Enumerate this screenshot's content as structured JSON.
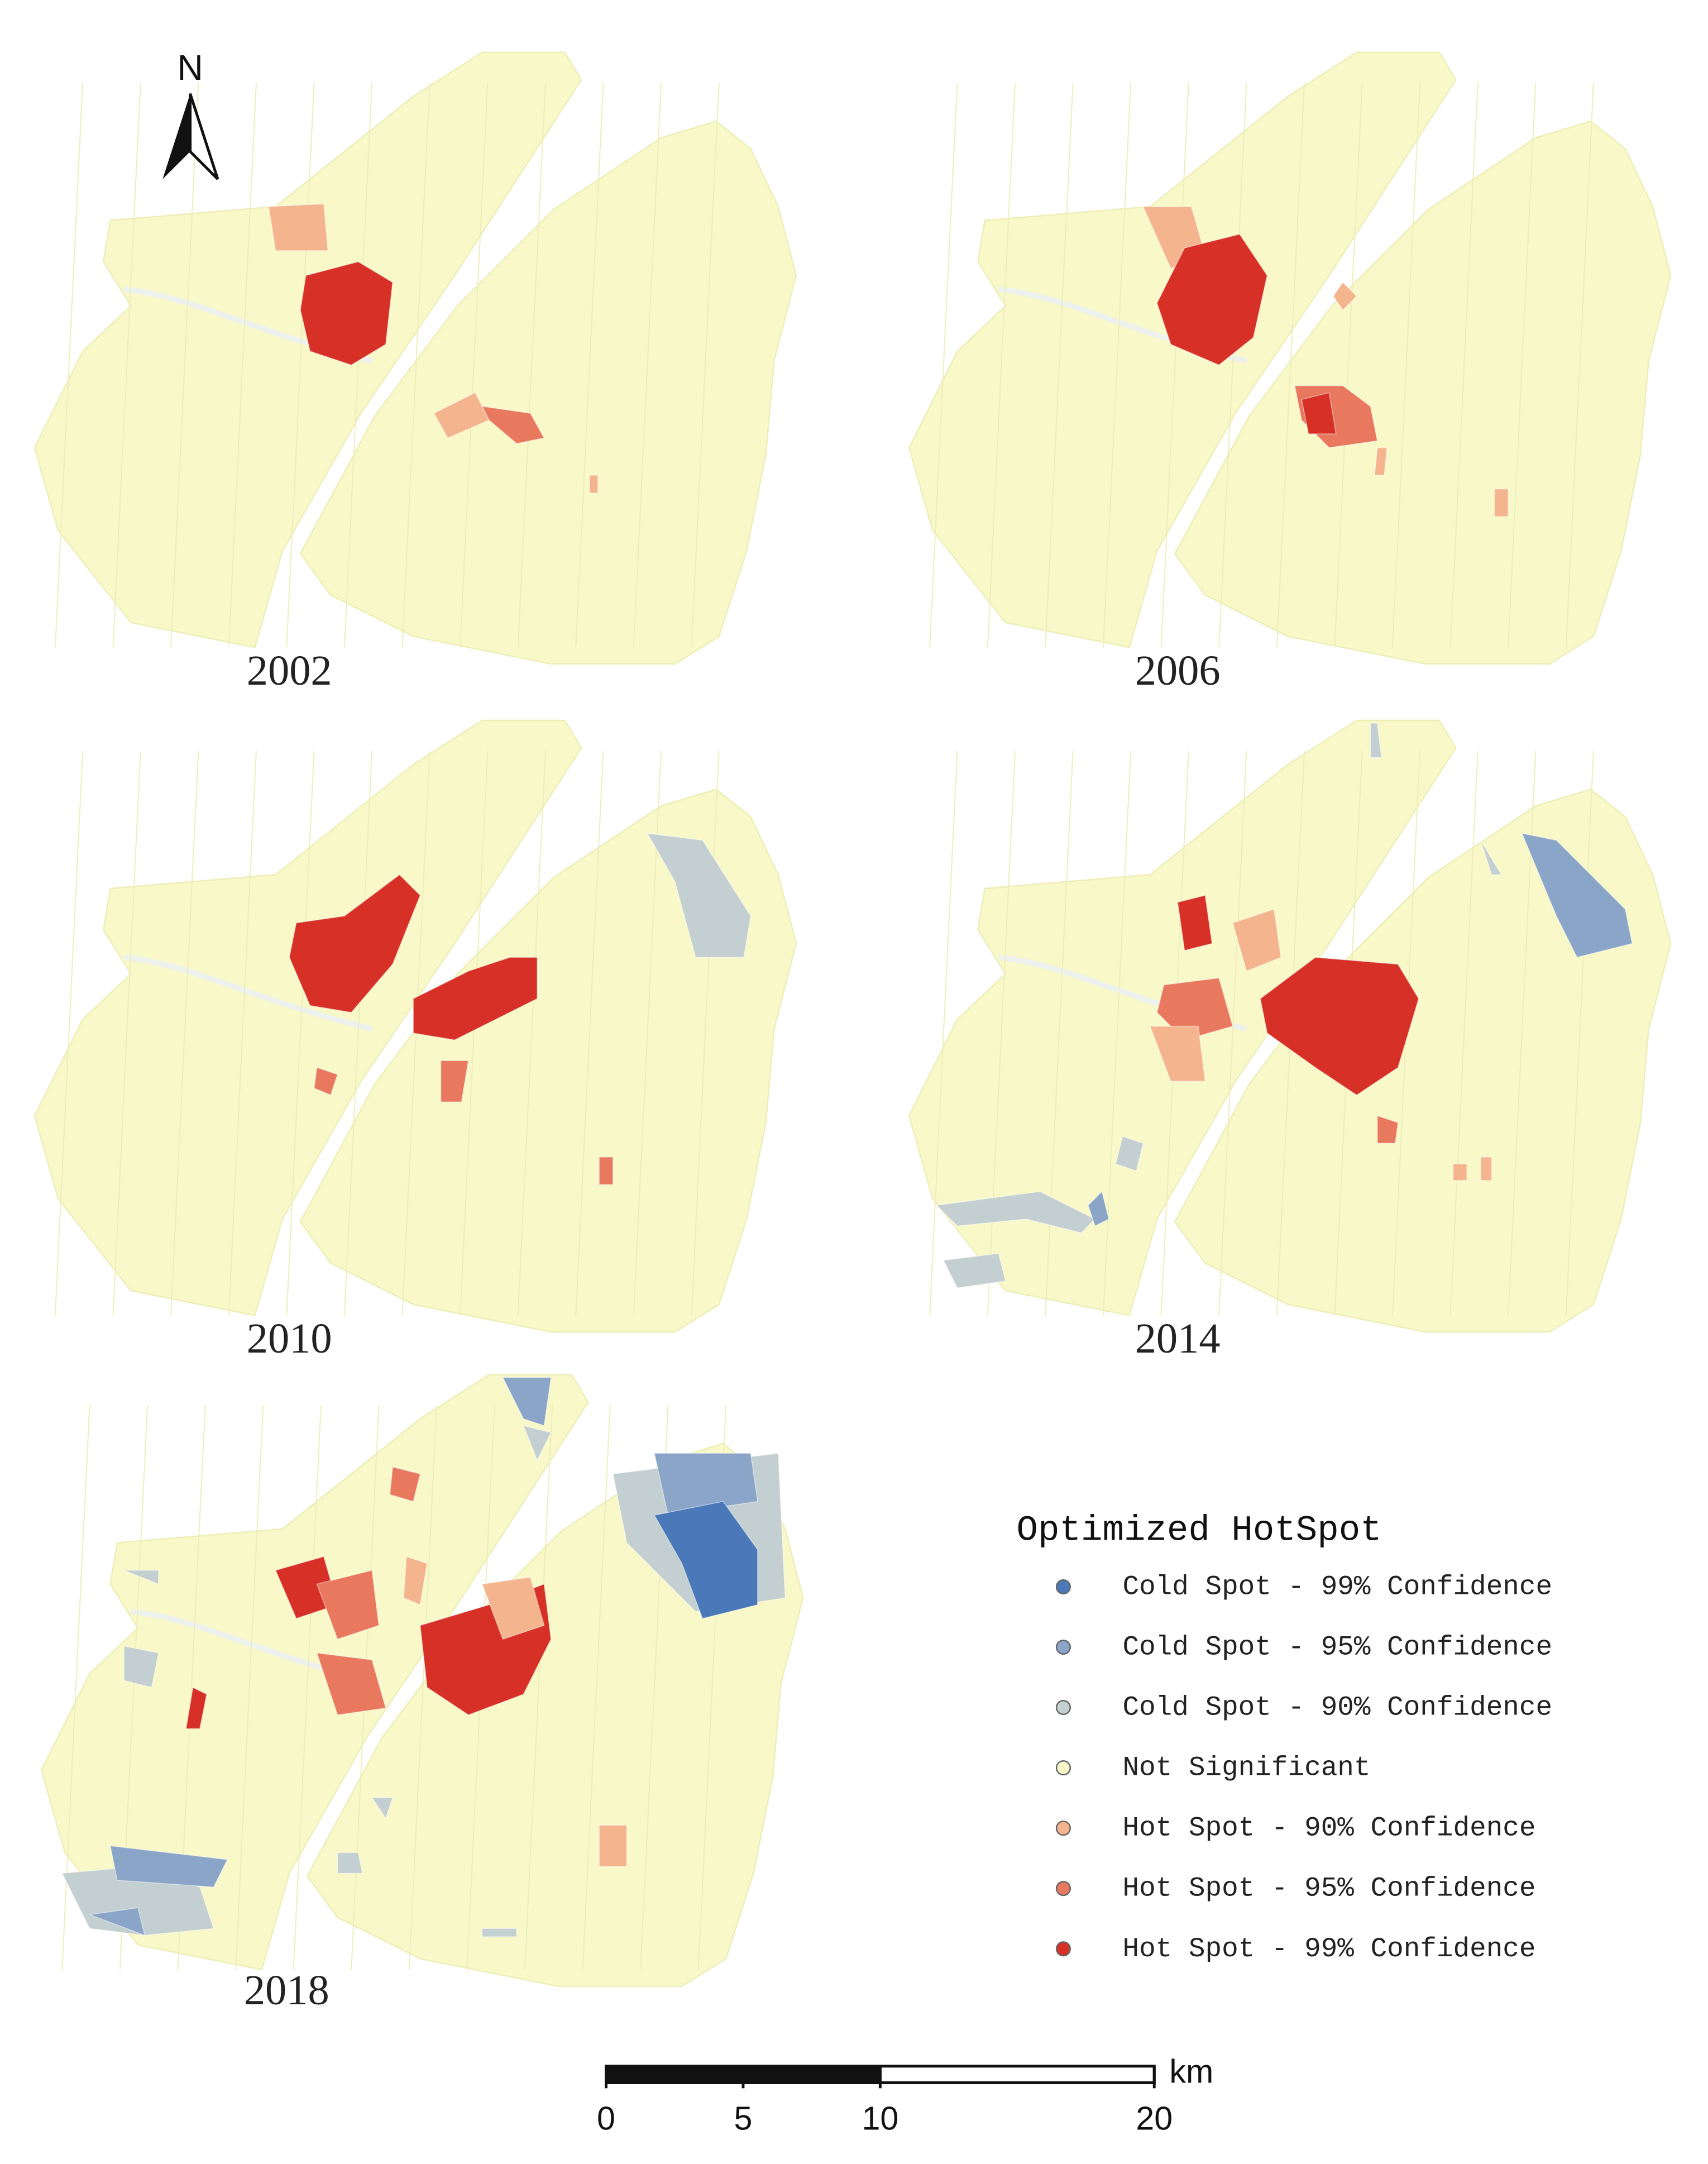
{
  "north_arrow": {
    "label": "N"
  },
  "panels": [
    {
      "year": "2002"
    },
    {
      "year": "2006"
    },
    {
      "year": "2010"
    },
    {
      "year": "2014"
    },
    {
      "year": "2018"
    }
  ],
  "legend": {
    "title": "Optimized HotSpot",
    "items": [
      {
        "label": "Cold Spot - 99% Confidence",
        "color": "#4a78b8"
      },
      {
        "label": "Cold Spot - 95% Confidence",
        "color": "#8aa5c8"
      },
      {
        "label": "Cold Spot - 90% Confidence",
        "color": "#c3cfd0"
      },
      {
        "label": "Not Significant",
        "color": "#f8f8c8"
      },
      {
        "label": "Hot Spot - 90% Confidence",
        "color": "#f4b48e"
      },
      {
        "label": "Hot Spot - 95% Confidence",
        "color": "#e8785e"
      },
      {
        "label": "Hot Spot - 99% Confidence",
        "color": "#d73027"
      }
    ]
  },
  "scale_bar": {
    "unit": "km",
    "ticks": [
      0,
      5,
      10,
      20
    ]
  }
}
